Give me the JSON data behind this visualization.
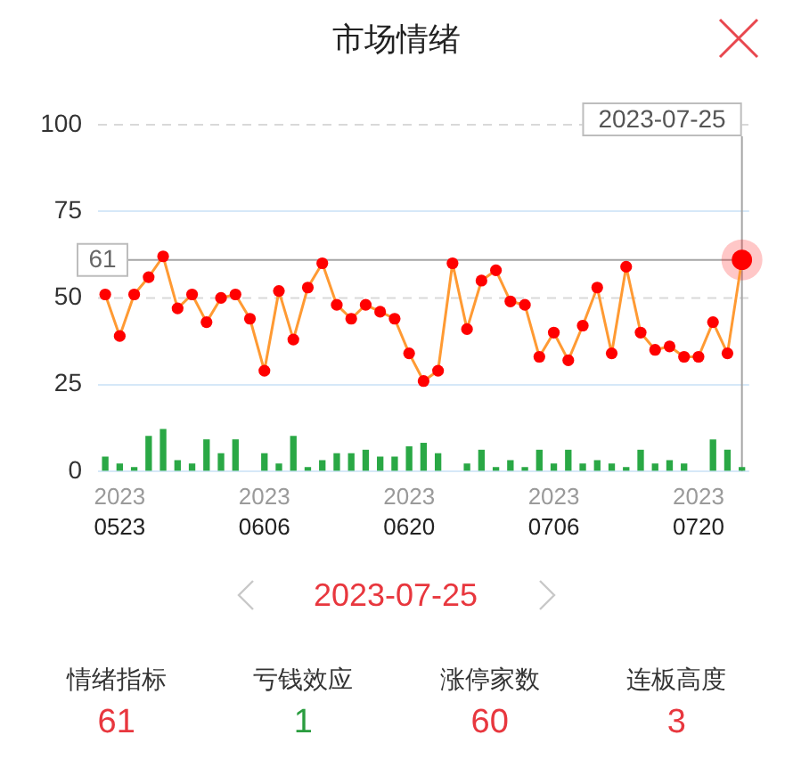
{
  "chart_data": {
    "type": "line",
    "title": "市场情绪",
    "categories": [
      null,
      "2023\n0523",
      null,
      null,
      null,
      null,
      null,
      null,
      null,
      null,
      null,
      "2023\n0606",
      null,
      null,
      null,
      null,
      null,
      null,
      null,
      null,
      null,
      "2023\n0620",
      null,
      null,
      null,
      null,
      null,
      null,
      null,
      null,
      null,
      "2023\n0706",
      null,
      null,
      null,
      null,
      null,
      null,
      null,
      null,
      null,
      "2023\n0720",
      null,
      null,
      null
    ],
    "series": [
      {
        "color": "#ff0000",
        "values": [
          51,
          39,
          51,
          56,
          62,
          47,
          51,
          43,
          50,
          51,
          44,
          29,
          52,
          38,
          53,
          60,
          48,
          44,
          48,
          46,
          44,
          34,
          26,
          29,
          60,
          41,
          55,
          58,
          49,
          48,
          33,
          40,
          32,
          42,
          53,
          34,
          59,
          40,
          35,
          36,
          33,
          33,
          43,
          34,
          61
        ]
      },
      {
        "type": "bar",
        "color": "#2aa845",
        "values": [
          4,
          2,
          1,
          10,
          12,
          3,
          2,
          9,
          5,
          9,
          null,
          5,
          2,
          10,
          1,
          3,
          5,
          5,
          6,
          4,
          4,
          7,
          8,
          5,
          null,
          2,
          6,
          1,
          3,
          1,
          6,
          2,
          6,
          2,
          3,
          2,
          1,
          6,
          2,
          3,
          2,
          null,
          9,
          6,
          1
        ]
      }
    ],
    "ylim": [
      0,
      100
    ],
    "yticks": [
      0,
      25,
      50,
      75,
      100
    ],
    "grid": "y",
    "marker": "circle",
    "ref_lines": [
      {
        "axis": "y",
        "value": 100,
        "color": "#d9d9d9",
        "line_style": "dashed"
      },
      {
        "axis": "y",
        "value": 50,
        "color": "#d9d9d9",
        "line_style": "dashed"
      },
      {
        "axis": "y",
        "value": 61,
        "label": "61",
        "color": "#a6a6a6"
      }
    ],
    "annotations": [
      "2023-07-25",
      "2023-07-25",
      "情绪指标",
      "61",
      "亏钱效应",
      "1",
      "涨停家数",
      "60",
      "连板高度",
      "3"
    ]
  }
}
